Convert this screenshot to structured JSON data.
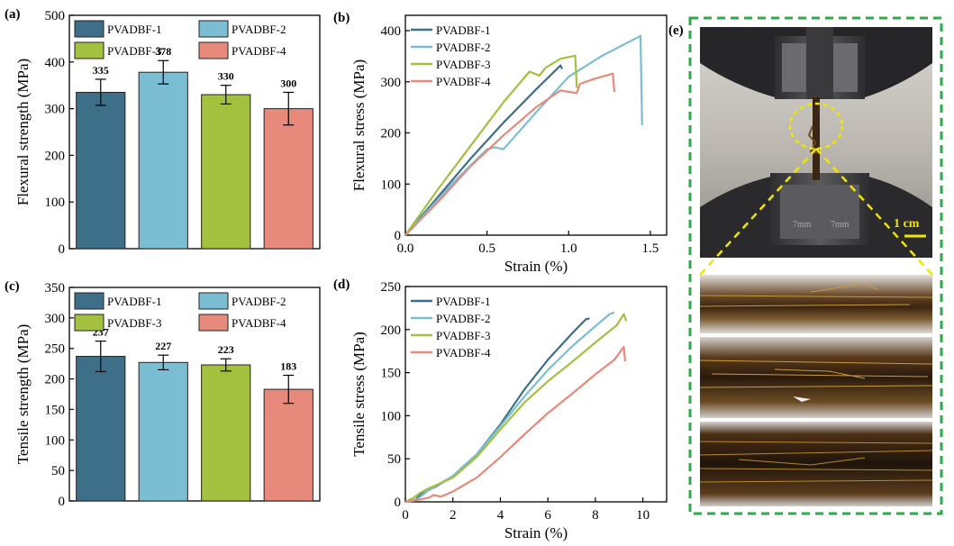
{
  "figure": {
    "panel_e_label": "(e)",
    "scale_bar_label": "1 cm",
    "photo_description_colors": {
      "dashed_border": "#2faa4a",
      "highlight": "#f2e600"
    }
  },
  "colors": {
    "PVADBF-1": "#3d6f88",
    "PVADBF-2": "#7bbdd3",
    "PVADBF-3": "#a3c03f",
    "PVADBF-4": "#e7897b"
  },
  "chart_data": [
    {
      "id": "a",
      "panel_label": "(a)",
      "type": "bar",
      "ylabel": "Flexural strength (MPa)",
      "xlabel": "",
      "ylim": [
        0,
        500
      ],
      "yticks": [
        0,
        100,
        200,
        300,
        400,
        500
      ],
      "categories": [
        "PVADBF-1",
        "PVADBF-2",
        "PVADBF-3",
        "PVADBF-4"
      ],
      "values": [
        335,
        378,
        330,
        300
      ],
      "errors": [
        28,
        25,
        20,
        35
      ],
      "value_labels": [
        "335",
        "378",
        "330",
        "300"
      ],
      "legend": [
        "PVADBF-1",
        "PVADBF-2",
        "PVADBF-3",
        "PVADBF-4"
      ],
      "legend_position": "top"
    },
    {
      "id": "b",
      "panel_label": "(b)",
      "type": "line",
      "xlabel": "Strain (%)",
      "ylabel": "Flexural stress (MPa)",
      "xlim": [
        0,
        1.6
      ],
      "ylim": [
        0,
        430
      ],
      "xticks": [
        0.0,
        0.5,
        1.0,
        1.5
      ],
      "xtick_labels": [
        "0.0",
        "0.5",
        "1.0",
        "1.5"
      ],
      "yticks": [
        0,
        100,
        200,
        300,
        400
      ],
      "legend_position": "top-left",
      "series": [
        {
          "name": "PVADBF-1",
          "x": [
            0,
            0.2,
            0.4,
            0.6,
            0.8,
            0.95,
            0.96
          ],
          "y": [
            0,
            75,
            150,
            220,
            285,
            332,
            325
          ]
        },
        {
          "name": "PVADBF-2",
          "x": [
            0,
            0.3,
            0.5,
            0.55,
            0.6,
            0.8,
            1.0,
            1.2,
            1.43,
            1.44,
            1.45
          ],
          "y": [
            0,
            105,
            168,
            172,
            168,
            240,
            310,
            350,
            388,
            390,
            215
          ]
        },
        {
          "name": "PVADBF-3",
          "x": [
            0,
            0.2,
            0.4,
            0.6,
            0.76,
            0.82,
            0.86,
            0.95,
            1.04,
            1.05
          ],
          "y": [
            0,
            90,
            175,
            260,
            320,
            312,
            328,
            345,
            351,
            288
          ]
        },
        {
          "name": "PVADBF-4",
          "x": [
            0,
            0.2,
            0.4,
            0.6,
            0.8,
            0.95,
            1.05,
            1.07,
            1.15,
            1.27,
            1.28
          ],
          "y": [
            0,
            65,
            135,
            195,
            250,
            283,
            278,
            296,
            305,
            316,
            280
          ]
        }
      ]
    },
    {
      "id": "c",
      "panel_label": "(c)",
      "type": "bar",
      "ylabel": "Tensile strength (MPa)",
      "xlabel": "",
      "ylim": [
        0,
        350
      ],
      "yticks": [
        0,
        50,
        100,
        150,
        200,
        250,
        300,
        350
      ],
      "categories": [
        "PVADBF-1",
        "PVADBF-2",
        "PVADBF-3",
        "PVADBF-4"
      ],
      "values": [
        237,
        227,
        223,
        183
      ],
      "errors": [
        25,
        12,
        10,
        23
      ],
      "value_labels": [
        "237",
        "227",
        "223",
        "183"
      ],
      "legend": [
        "PVADBF-1",
        "PVADBF-2",
        "PVADBF-3",
        "PVADBF-4"
      ],
      "legend_position": "top"
    },
    {
      "id": "d",
      "panel_label": "(d)",
      "type": "line",
      "xlabel": "Strain (%)",
      "ylabel": "Tensile stress (MPa)",
      "xlim": [
        0,
        11
      ],
      "ylim": [
        0,
        250
      ],
      "xticks": [
        0,
        2,
        4,
        6,
        8,
        10
      ],
      "xtick_labels": [
        "0",
        "2",
        "4",
        "6",
        "8",
        "10"
      ],
      "yticks": [
        0,
        50,
        100,
        150,
        200,
        250
      ],
      "legend_position": "top-left",
      "series": [
        {
          "name": "PVADBF-1",
          "x": [
            0,
            0.4,
            0.7,
            1.0,
            1.3,
            2,
            3,
            4,
            5,
            6,
            7,
            7.6,
            7.75
          ],
          "y": [
            0,
            2,
            10,
            14,
            18,
            30,
            55,
            90,
            130,
            165,
            195,
            212,
            213
          ]
        },
        {
          "name": "PVADBF-2",
          "x": [
            0,
            0.5,
            0.9,
            1.2,
            2,
            3,
            4,
            5,
            6,
            7,
            8,
            8.6,
            8.8
          ],
          "y": [
            0,
            3,
            12,
            17,
            30,
            55,
            88,
            122,
            153,
            180,
            204,
            218,
            220
          ]
        },
        {
          "name": "PVADBF-3",
          "x": [
            0,
            0.3,
            0.6,
            1.0,
            2,
            3,
            4,
            5,
            6,
            7,
            8,
            8.9,
            9.2,
            9.3
          ],
          "y": [
            0,
            4,
            10,
            16,
            28,
            52,
            84,
            115,
            140,
            162,
            185,
            205,
            218,
            210
          ]
        },
        {
          "name": "PVADBF-4",
          "x": [
            0,
            0.5,
            1.0,
            1.2,
            1.5,
            2,
            3,
            4,
            5,
            6,
            7,
            8,
            8.8,
            9.2,
            9.25
          ],
          "y": [
            0,
            2,
            5,
            8,
            6,
            12,
            28,
            52,
            78,
            103,
            125,
            148,
            165,
            180,
            163
          ]
        }
      ]
    }
  ]
}
